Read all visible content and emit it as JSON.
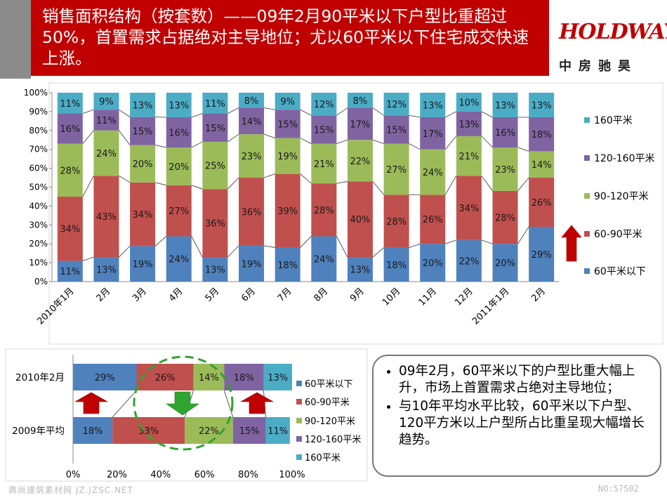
{
  "title": "销售面积结构（按套数）——09年2月90平米以下户型比重超过50%，首置需求占据绝对主导地位；尤以60平米以下住宅成交快速上涨。",
  "logo": {
    "main": "HOLDWAYS",
    "sub": "中房驰昊"
  },
  "notes": [
    "09年2月，60平米以下的户型比重大幅上升，市场上首置需求占绝对主导地位；",
    "与10年平均水平比较，60平米以下户型、120平方米以上户型所占比重呈现大幅增长趋势。"
  ],
  "footer": {
    "left": "典尚建筑素材网 JZ.JZSC.NET",
    "right": "NO:57502"
  },
  "colors": {
    "s1": "#4f81bd",
    "s2": "#c0504d",
    "s3": "#9bbb59",
    "s4": "#8064a2",
    "s5": "#4bacc6",
    "header": "#c00000"
  },
  "chart_data": [
    {
      "type": "bar",
      "stacked": true,
      "percent_stacked": true,
      "categories": [
        "2010年1月",
        "2月",
        "3月",
        "4月",
        "5月",
        "6月",
        "7月",
        "8月",
        "9月",
        "10月",
        "11月",
        "12月",
        "2011年1月",
        "2月"
      ],
      "series": [
        {
          "name": "60平米以下",
          "values": [
            11,
            13,
            19,
            24,
            13,
            19,
            18,
            24,
            13,
            18,
            20,
            22,
            20,
            29
          ]
        },
        {
          "name": "60-90平米",
          "values": [
            34,
            43,
            34,
            27,
            36,
            36,
            39,
            28,
            40,
            28,
            26,
            34,
            28,
            26
          ]
        },
        {
          "name": "90-120平米",
          "values": [
            28,
            24,
            20,
            20,
            25,
            23,
            19,
            21,
            22,
            27,
            24,
            21,
            23,
            14
          ]
        },
        {
          "name": "120-160平米",
          "values": [
            16,
            11,
            15,
            16,
            15,
            14,
            15,
            15,
            17,
            15,
            17,
            13,
            16,
            18
          ]
        },
        {
          "name": "160平米",
          "values": [
            11,
            9,
            13,
            13,
            11,
            8,
            9,
            12,
            8,
            12,
            13,
            10,
            13,
            13
          ]
        }
      ],
      "yticks": [
        "0%",
        "10%",
        "20%",
        "30%",
        "40%",
        "50%",
        "60%",
        "70%",
        "80%",
        "90%",
        "100%"
      ],
      "ylim": [
        0,
        100
      ],
      "legend": "right"
    },
    {
      "type": "bar",
      "orientation": "horizontal",
      "stacked": true,
      "percent_stacked": true,
      "categories": [
        "2010年2月",
        "2009年平均"
      ],
      "series": [
        {
          "name": "60平米以下",
          "values": [
            29,
            18
          ]
        },
        {
          "name": "60-90平米",
          "values": [
            26,
            33
          ]
        },
        {
          "name": "90-120平米",
          "values": [
            14,
            22
          ]
        },
        {
          "name": "120-160平米",
          "values": [
            18,
            15
          ]
        },
        {
          "name": "160平米",
          "values": [
            13,
            11
          ]
        }
      ],
      "xticks": [
        "0%",
        "20%",
        "40%",
        "60%",
        "80%",
        "100%"
      ],
      "xlim": [
        0,
        100
      ],
      "legend": "right"
    }
  ]
}
